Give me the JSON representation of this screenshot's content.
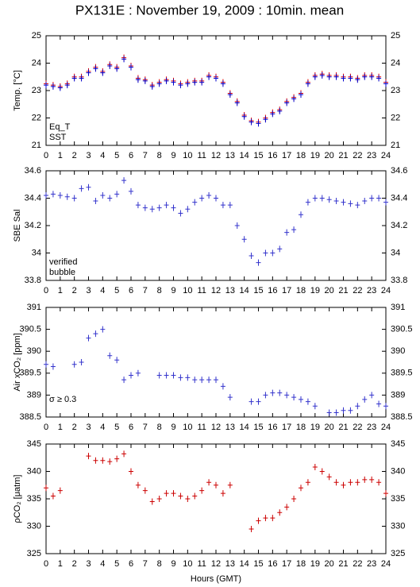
{
  "chart_data": [
    {
      "type": "scatter",
      "title": "PX131E : November 19, 2009 : 10min. mean",
      "ylabel": "Temp. [°C]",
      "x": [
        0,
        0.5,
        1,
        1.5,
        2,
        2.5,
        3,
        3.5,
        4,
        4.5,
        5,
        5.5,
        6,
        6.5,
        7,
        7.5,
        8,
        8.5,
        9,
        9.5,
        10,
        10.5,
        11,
        11.5,
        12,
        12.5,
        13,
        13.5,
        14,
        14.5,
        15,
        15.5,
        16,
        16.5,
        17,
        17.5,
        18,
        18.5,
        19,
        19.5,
        20,
        20.5,
        21,
        21.5,
        22,
        22.5,
        23,
        23.5,
        24
      ],
      "series": [
        {
          "name": "Eq_T",
          "color": "#e00000",
          "values": [
            23.25,
            23.2,
            23.15,
            23.25,
            23.5,
            23.5,
            23.7,
            23.85,
            23.7,
            23.95,
            23.85,
            24.2,
            23.9,
            23.45,
            23.4,
            23.2,
            23.3,
            23.4,
            23.35,
            23.25,
            23.3,
            23.35,
            23.35,
            23.55,
            23.5,
            23.3,
            22.9,
            22.6,
            22.1,
            21.9,
            21.85,
            22.0,
            22.2,
            22.3,
            22.6,
            22.75,
            22.9,
            23.3,
            23.55,
            23.6,
            23.55,
            23.55,
            23.5,
            23.5,
            23.45,
            23.55,
            23.55,
            23.5,
            23.3
          ]
        },
        {
          "name": "SST",
          "color": "#0000cc",
          "values": [
            23.2,
            23.15,
            23.1,
            23.2,
            23.45,
            23.45,
            23.65,
            23.8,
            23.65,
            23.9,
            23.8,
            24.15,
            23.85,
            23.4,
            23.35,
            23.15,
            23.25,
            23.35,
            23.3,
            23.2,
            23.25,
            23.3,
            23.3,
            23.5,
            23.45,
            23.25,
            22.85,
            22.55,
            22.05,
            21.85,
            21.8,
            21.95,
            22.15,
            22.25,
            22.55,
            22.7,
            22.85,
            23.25,
            23.5,
            23.55,
            23.5,
            23.5,
            23.45,
            23.45,
            23.4,
            23.5,
            23.5,
            23.45,
            23.25
          ]
        }
      ],
      "xlim": [
        0,
        24
      ],
      "xticks": [
        0,
        1,
        2,
        3,
        4,
        5,
        6,
        7,
        8,
        9,
        10,
        11,
        12,
        13,
        14,
        15,
        16,
        17,
        18,
        19,
        20,
        21,
        22,
        23,
        24
      ],
      "ylim": [
        21,
        25
      ],
      "yticks": [
        21,
        22,
        23,
        24,
        25
      ],
      "legend": "lower left"
    },
    {
      "type": "scatter",
      "ylabel": "SBE Sal",
      "x": [
        0,
        0.5,
        1,
        1.5,
        2,
        2.5,
        3,
        3.5,
        4,
        4.5,
        5,
        5.5,
        6,
        6.5,
        7,
        7.5,
        8,
        8.5,
        9,
        9.5,
        10,
        10.5,
        11,
        11.5,
        12,
        12.5,
        13,
        13.5,
        14,
        14.5,
        15,
        15.5,
        16,
        16.5,
        17,
        17.5,
        18,
        18.5,
        19,
        19.5,
        20,
        20.5,
        21,
        21.5,
        22,
        22.5,
        23,
        23.5,
        24
      ],
      "series": [
        {
          "name": "verified",
          "color": "#3333cc",
          "values": [
            34.42,
            34.43,
            34.42,
            34.41,
            34.4,
            34.47,
            34.48,
            34.38,
            34.42,
            34.4,
            34.43,
            34.53,
            34.45,
            34.35,
            34.33,
            34.32,
            34.33,
            34.35,
            34.33,
            34.29,
            34.32,
            34.37,
            34.4,
            34.42,
            34.4,
            34.35,
            34.35,
            34.2,
            34.1,
            33.98,
            33.93,
            34.0,
            34.0,
            34.03,
            34.15,
            34.17,
            34.28,
            34.37,
            34.4,
            34.4,
            34.39,
            34.38,
            34.37,
            34.36,
            34.35,
            34.38,
            34.4,
            34.4,
            34.37
          ]
        },
        {
          "name": "bubble",
          "color": "#cc00cc",
          "values": [
            null,
            null,
            null,
            null,
            null,
            null,
            null,
            null,
            null,
            null,
            null,
            null,
            null,
            null,
            null,
            null,
            null,
            null,
            null,
            null,
            null,
            null,
            null,
            null,
            null,
            null,
            null,
            null,
            null,
            null,
            null,
            null,
            null,
            null,
            null,
            null,
            null,
            null,
            null,
            null,
            null,
            null,
            null,
            null,
            null,
            null,
            null,
            null,
            null
          ]
        }
      ],
      "xlim": [
        0,
        24
      ],
      "xticks": [
        0,
        1,
        2,
        3,
        4,
        5,
        6,
        7,
        8,
        9,
        10,
        11,
        12,
        13,
        14,
        15,
        16,
        17,
        18,
        19,
        20,
        21,
        22,
        23,
        24
      ],
      "ylim": [
        33.8,
        34.6
      ],
      "yticks": [
        33.8,
        34,
        34.2,
        34.4,
        34.6
      ],
      "legend": "lower left"
    },
    {
      "type": "scatter",
      "ylabel": "Air xCO₂ [ppm]",
      "annotation": "σ ≥ 0.3",
      "x": [
        0,
        0.5,
        1,
        1.5,
        2,
        2.5,
        3,
        3.5,
        4,
        4.5,
        5,
        5.5,
        6,
        6.5,
        7,
        7.5,
        8,
        8.5,
        9,
        9.5,
        10,
        10.5,
        11,
        11.5,
        12,
        12.5,
        13,
        13.5,
        14,
        14.5,
        15,
        15.5,
        16,
        16.5,
        17,
        17.5,
        18,
        18.5,
        19,
        19.5,
        20,
        20.5,
        21,
        21.5,
        22,
        22.5,
        23,
        23.5,
        24
      ],
      "series": [
        {
          "color": "#3333cc",
          "values": [
            389.7,
            389.65,
            null,
            null,
            389.7,
            389.75,
            390.3,
            390.4,
            390.5,
            389.9,
            389.8,
            389.35,
            389.45,
            389.5,
            null,
            null,
            389.45,
            389.45,
            389.45,
            389.4,
            389.4,
            389.35,
            389.35,
            389.35,
            389.35,
            389.2,
            388.95,
            null,
            null,
            388.85,
            388.85,
            389.0,
            389.05,
            389.05,
            389.0,
            388.95,
            388.9,
            388.85,
            388.75,
            null,
            388.6,
            388.6,
            388.65,
            388.65,
            388.75,
            388.9,
            389.0,
            388.8,
            388.75
          ]
        }
      ],
      "xlim": [
        0,
        24
      ],
      "xticks": [
        0,
        1,
        2,
        3,
        4,
        5,
        6,
        7,
        8,
        9,
        10,
        11,
        12,
        13,
        14,
        15,
        16,
        17,
        18,
        19,
        20,
        21,
        22,
        23,
        24
      ],
      "ylim": [
        388.5,
        391
      ],
      "yticks": [
        388.5,
        389,
        389.5,
        390,
        390.5,
        391
      ]
    },
    {
      "type": "scatter",
      "ylabel": "ρCO₂ [μatm]",
      "xlabel": "Hours (GMT)",
      "x": [
        0,
        0.5,
        1,
        1.5,
        2,
        2.5,
        3,
        3.5,
        4,
        4.5,
        5,
        5.5,
        6,
        6.5,
        7,
        7.5,
        8,
        8.5,
        9,
        9.5,
        10,
        10.5,
        11,
        11.5,
        12,
        12.5,
        13,
        13.5,
        14,
        14.5,
        15,
        15.5,
        16,
        16.5,
        17,
        17.5,
        18,
        18.5,
        19,
        19.5,
        20,
        20.5,
        21,
        21.5,
        22,
        22.5,
        23,
        23.5,
        24
      ],
      "series": [
        {
          "color": "#cc0000",
          "values": [
            337,
            335.5,
            336.5,
            null,
            null,
            null,
            342.8,
            342,
            342,
            341.8,
            342.3,
            343.2,
            340,
            337.5,
            336.5,
            334.5,
            335,
            336,
            336,
            335.5,
            335,
            335.5,
            336.5,
            338,
            337.5,
            336,
            337.5,
            null,
            null,
            329.5,
            331,
            331.5,
            331.5,
            332.5,
            333.5,
            335,
            337,
            338,
            340.8,
            340,
            339,
            338,
            337.5,
            338,
            338,
            338.5,
            338.5,
            338,
            336
          ]
        }
      ],
      "xlim": [
        0,
        24
      ],
      "xticks": [
        0,
        1,
        2,
        3,
        4,
        5,
        6,
        7,
        8,
        9,
        10,
        11,
        12,
        13,
        14,
        15,
        16,
        17,
        18,
        19,
        20,
        21,
        22,
        23,
        24
      ],
      "ylim": [
        325,
        345
      ],
      "yticks": [
        325,
        330,
        335,
        340,
        345
      ]
    }
  ]
}
